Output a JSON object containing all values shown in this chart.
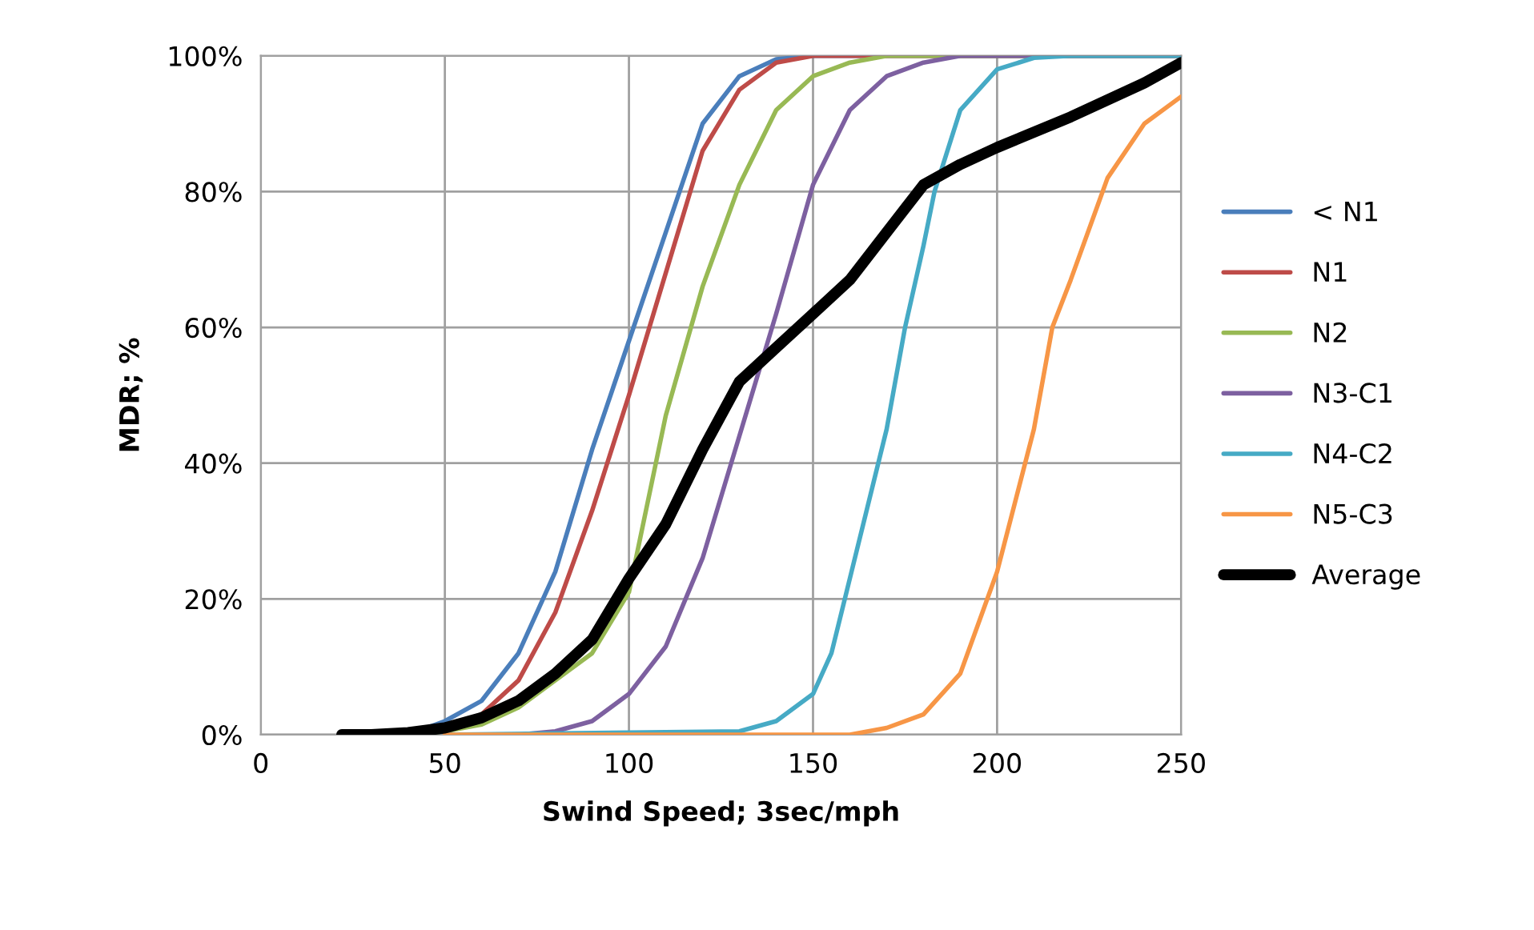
{
  "chart_data": {
    "type": "line",
    "xlabel": "Swind Speed; 3sec/mph",
    "ylabel": "MDR; %",
    "xlim": [
      0,
      250
    ],
    "xticks": [
      0,
      50,
      100,
      150,
      200,
      250
    ],
    "ylim": [
      0,
      100
    ],
    "yticks": [
      {
        "value": 0,
        "label": "0%"
      },
      {
        "value": 20,
        "label": "20%"
      },
      {
        "value": 40,
        "label": "40%"
      },
      {
        "value": 60,
        "label": "60%"
      },
      {
        "value": 80,
        "label": "80%"
      },
      {
        "value": 100,
        "label": "100%"
      }
    ],
    "grid": true,
    "legend": "right",
    "marker": "none",
    "line_style": "solid",
    "series": [
      {
        "name": "< N1",
        "color": "#4a7ebb",
        "x": [
          40,
          50,
          60,
          70,
          80,
          90,
          100,
          110,
          120,
          130,
          140,
          150,
          250
        ],
        "values": [
          0,
          2,
          5,
          12,
          24,
          42,
          58,
          74,
          90,
          97,
          99.5,
          100,
          100
        ]
      },
      {
        "name": "N1",
        "color": "#be4b48",
        "x": [
          40,
          50,
          60,
          70,
          80,
          90,
          100,
          110,
          120,
          130,
          140,
          150,
          250
        ],
        "values": [
          0,
          1,
          3,
          8,
          18,
          33,
          50,
          68,
          86,
          95,
          99,
          100,
          100
        ]
      },
      {
        "name": "N2",
        "color": "#98b954",
        "x": [
          40,
          50,
          60,
          70,
          80,
          90,
          100,
          110,
          120,
          130,
          140,
          150,
          160,
          170,
          250
        ],
        "values": [
          0,
          0.5,
          1.5,
          4,
          8,
          12,
          21,
          47,
          66,
          81,
          92,
          97,
          99,
          100,
          100
        ]
      },
      {
        "name": "N3-C1",
        "color": "#7d60a0",
        "x": [
          50,
          70,
          80,
          90,
          100,
          110,
          120,
          130,
          140,
          150,
          160,
          170,
          180,
          190,
          250
        ],
        "values": [
          0,
          0,
          0.5,
          2,
          6,
          13,
          26,
          44,
          62,
          81,
          92,
          97,
          99,
          100,
          100
        ]
      },
      {
        "name": "N4-C2",
        "color": "#46aac5",
        "x": [
          50,
          130,
          140,
          150,
          155,
          160,
          170,
          175,
          180,
          183,
          190,
          200,
          210,
          220,
          250
        ],
        "values": [
          0,
          0.5,
          2,
          6,
          12,
          23,
          45,
          60,
          72,
          80,
          92,
          98,
          99.7,
          100,
          100
        ]
      },
      {
        "name": "N5-C3",
        "color": "#f79646",
        "x": [
          50,
          160,
          170,
          180,
          190,
          200,
          210,
          215,
          220,
          230,
          240,
          250
        ],
        "values": [
          0,
          0,
          1,
          3,
          9,
          24,
          45,
          60,
          67,
          82,
          90,
          94
        ]
      },
      {
        "name": "Average",
        "color": "#000000",
        "x": [
          22,
          30,
          40,
          50,
          60,
          70,
          80,
          90,
          100,
          110,
          120,
          130,
          140,
          150,
          160,
          170,
          180,
          190,
          200,
          220,
          240,
          250
        ],
        "values": [
          0,
          0,
          0.3,
          1,
          2.5,
          5,
          9,
          14,
          23,
          31,
          42,
          52,
          57,
          62,
          67,
          74,
          81,
          84,
          86.5,
          91,
          96,
          99
        ]
      }
    ]
  }
}
